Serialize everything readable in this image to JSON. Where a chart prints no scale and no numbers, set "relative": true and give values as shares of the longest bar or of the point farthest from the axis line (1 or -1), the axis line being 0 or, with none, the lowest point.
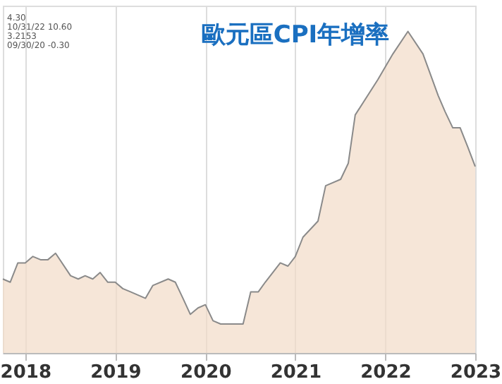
{
  "chart_data": {
    "type": "area",
    "title": "歐元區CPI年增率",
    "relative": true,
    "grid": "x",
    "x": [
      "2018-04",
      "2018-05",
      "2018-06",
      "2018-07",
      "2018-08",
      "2018-09",
      "2018-10",
      "2018-11",
      "2019-01",
      "2019-02",
      "2019-03",
      "2019-04",
      "2019-05",
      "2019-06",
      "2019-07",
      "2019-08",
      "2019-09",
      "2019-11",
      "2019-12",
      "2020-02",
      "2020-03",
      "2020-04",
      "2020-05",
      "2020-06",
      "2020-07",
      "2020-08",
      "2020-09",
      "2020-12",
      "2021-01",
      "2021-02",
      "2021-03",
      "2021-05",
      "2021-06",
      "2021-07",
      "2021-08",
      "2021-10",
      "2021-11",
      "2022-01",
      "2022-02",
      "2022-03",
      "2022-06",
      "2022-08",
      "2022-10",
      "2022-12",
      "2023-02",
      "2023-03",
      "2023-04",
      "2023-05",
      "2023-06",
      "2023-07"
    ],
    "series": [
      {
        "color": "#f2dcc8",
        "values": [
          0.23,
          0.22,
          0.28,
          0.28,
          0.3,
          0.29,
          0.29,
          0.31,
          0.24,
          0.23,
          0.24,
          0.23,
          0.25,
          0.22,
          0.22,
          0.2,
          0.19,
          0.17,
          0.21,
          0.23,
          0.22,
          0.17,
          0.12,
          0.14,
          0.15,
          0.1,
          0.09,
          0.09,
          0.19,
          0.19,
          0.22,
          0.28,
          0.27,
          0.3,
          0.36,
          0.41,
          0.52,
          0.54,
          0.59,
          0.74,
          0.85,
          0.93,
          1,
          0.93,
          0.8,
          0.75,
          0.7,
          0.7,
          0.64,
          0.58
        ]
      }
    ],
    "xticks": [
      {
        "value": "2018-07-01",
        "label": "2018"
      },
      {
        "value": "2019-07-01",
        "label": "2019"
      },
      {
        "value": "2020-07-01",
        "label": "2020"
      },
      {
        "value": "2021-07-01",
        "label": "2021"
      },
      {
        "value": "2022-07-01",
        "label": "2022"
      },
      {
        "value": "2023-07-01",
        "label": "2023"
      }
    ],
    "annotations": [
      "4.30",
      "10/31/22 10.60",
      "3.2153",
      "09/30/20 -0.30"
    ],
    "xlim": [
      "2018-04",
      "2023-07"
    ]
  }
}
